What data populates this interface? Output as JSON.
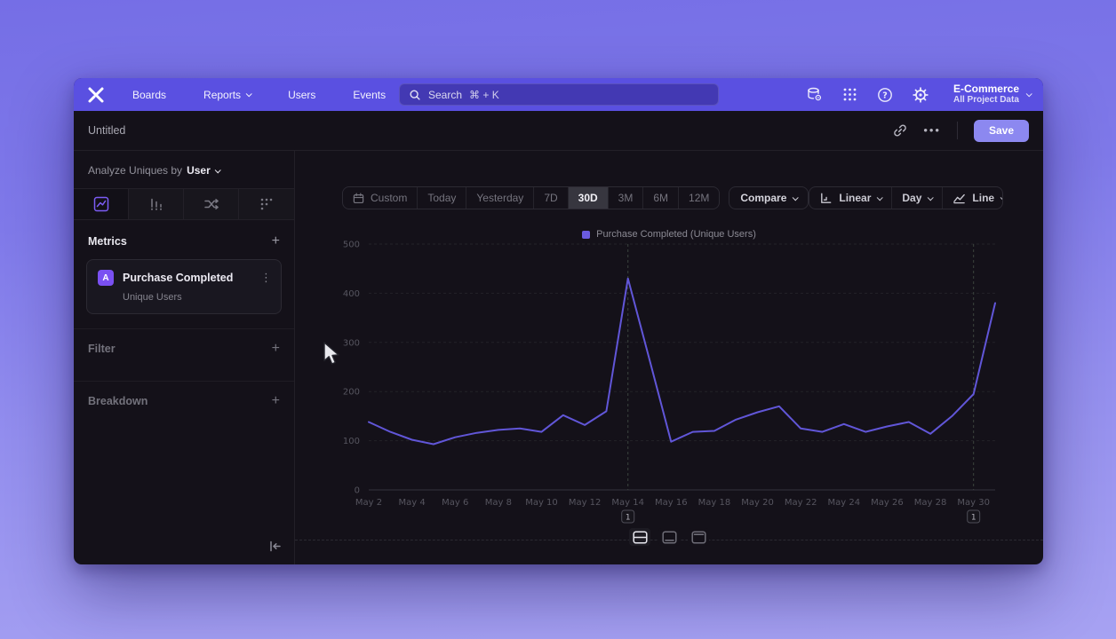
{
  "colors": {
    "nav_bar": "#5a50e1",
    "accent_purple": "#7c52f2",
    "save_button": "#8c88f0",
    "window_bg": "#141119",
    "line_color": "#6156d8"
  },
  "topnav": {
    "items": [
      {
        "label": "Boards"
      },
      {
        "label": "Reports"
      },
      {
        "label": "Users"
      },
      {
        "label": "Events"
      }
    ],
    "search": {
      "placeholder": "Search",
      "shortcut": "⌘ + K"
    },
    "icons": [
      "data-management-icon",
      "apps-grid-icon",
      "help-icon",
      "settings-icon"
    ],
    "project": {
      "name": "E-Commerce",
      "scope": "All Project Data"
    }
  },
  "header": {
    "title": "Untitled",
    "ellipsis": "•••",
    "save_label": "Save"
  },
  "sidebar": {
    "analyze_prefix": "Analyze Uniques by",
    "analyze_value": "User",
    "tabs": [
      "insights",
      "funnels",
      "flows",
      "retention"
    ],
    "active_tab": "insights",
    "metrics": {
      "title": "Metrics",
      "add": "+",
      "items": [
        {
          "badge": "A",
          "name": "Purchase Completed",
          "subtitle": "Unique Users"
        }
      ]
    },
    "filter": {
      "title": "Filter",
      "add": "+"
    },
    "breakdown": {
      "title": "Breakdown",
      "add": "+"
    }
  },
  "controls": {
    "date_ranges": [
      "Custom",
      "Today",
      "Yesterday",
      "7D",
      "30D",
      "3M",
      "6M",
      "12M"
    ],
    "selected_range": "30D",
    "compare": "Compare",
    "y_scale": "Linear",
    "granularity": "Day",
    "chart_type": "Line"
  },
  "chart_data": {
    "type": "line",
    "title": "",
    "legend": [
      {
        "label": "Purchase Completed (Unique Users)",
        "color": "#6a5be0"
      }
    ],
    "categories": [
      "May 2",
      "May 3",
      "May 4",
      "May 5",
      "May 6",
      "May 7",
      "May 8",
      "May 9",
      "May 10",
      "May 11",
      "May 12",
      "May 13",
      "May 14",
      "May 15",
      "May 16",
      "May 17",
      "May 18",
      "May 19",
      "May 20",
      "May 21",
      "May 22",
      "May 23",
      "May 24",
      "May 25",
      "May 26",
      "May 27",
      "May 28",
      "May 29",
      "May 30",
      "May 31"
    ],
    "series": [
      {
        "name": "Purchase Completed (Unique Users)",
        "values": [
          138,
          118,
          102,
          93,
          107,
          116,
          122,
          125,
          118,
          152,
          132,
          160,
          430,
          265,
          98,
          118,
          120,
          143,
          158,
          170,
          125,
          118,
          134,
          118,
          129,
          138,
          114,
          150,
          195,
          380
        ]
      }
    ],
    "ylim": [
      0,
      500
    ],
    "yticks": [
      0,
      100,
      200,
      300,
      400,
      500
    ],
    "xtick_every": 2,
    "grid": "horizontal-dashed",
    "legend_position": "top-center",
    "line_color": "#6156d8",
    "annotations": [
      {
        "category": "May 14",
        "label": "1"
      },
      {
        "category": "May 30",
        "label": "1"
      }
    ]
  },
  "footer": {
    "view_toggles": [
      "split-view",
      "chart-view",
      "table-view"
    ],
    "active_toggle": "split-view"
  }
}
